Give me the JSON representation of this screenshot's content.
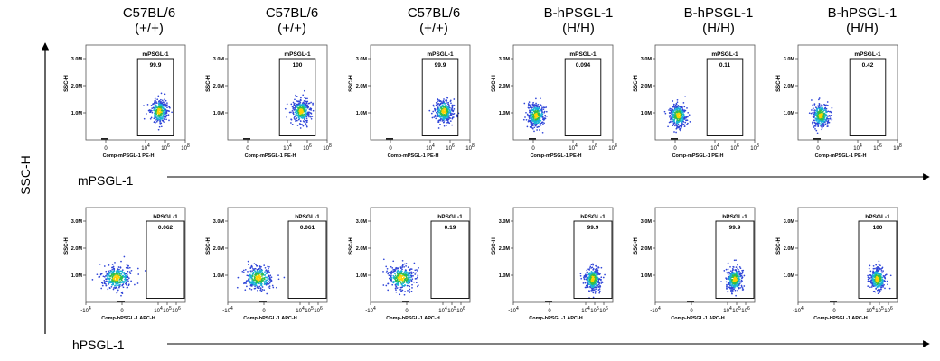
{
  "figure": {
    "column_titles": [
      [
        "C57BL/6",
        "(+/+)"
      ],
      [
        "C57BL/6",
        "(+/+)"
      ],
      [
        "C57BL/6",
        "(+/+)"
      ],
      [
        "B-hPSGL-1",
        "(H/H)"
      ],
      [
        "B-hPSGL-1",
        "(H/H)"
      ],
      [
        "B-hPSGL-1",
        "(H/H)"
      ]
    ],
    "y_axis_label": "SSC-H",
    "row_labels": [
      "mPSGL-1",
      "hPSGL-1"
    ]
  },
  "chart_data": [
    {
      "type": "scatter",
      "row": "mPSGL-1",
      "ylabel": "SSC-H",
      "yticks": [
        "1.0M",
        "2.0M",
        "3.0M"
      ],
      "ylim": [
        0,
        3.5
      ],
      "xlabel": "Comp-mPSGL-1 PE-H",
      "xticks": [
        "0",
        "10^4",
        "10^6",
        "10^8"
      ],
      "xlim": [
        -2,
        8
      ],
      "gate_label": "mPSGL-1",
      "gate_x": [
        3.2,
        6.8
      ],
      "gate_y": [
        0.15,
        3.0
      ],
      "panels": [
        {
          "sample": "C57BL/6 (+/+)",
          "gate_percent": "99.9",
          "cluster_center": [
            5.4,
            1.05
          ]
        },
        {
          "sample": "C57BL/6 (+/+)",
          "gate_percent": "100",
          "cluster_center": [
            5.4,
            1.05
          ]
        },
        {
          "sample": "C57BL/6 (+/+)",
          "gate_percent": "99.9",
          "cluster_center": [
            5.4,
            1.05
          ]
        },
        {
          "sample": "B-hPSGL-1 (H/H)",
          "gate_percent": "0.094",
          "cluster_center": [
            0.3,
            0.9
          ]
        },
        {
          "sample": "B-hPSGL-1 (H/H)",
          "gate_percent": "0.11",
          "cluster_center": [
            0.3,
            0.9
          ]
        },
        {
          "sample": "B-hPSGL-1 (H/H)",
          "gate_percent": "0.42",
          "cluster_center": [
            0.3,
            0.9
          ]
        }
      ]
    },
    {
      "type": "scatter",
      "row": "hPSGL-1",
      "ylabel": "SSC-H",
      "yticks": [
        "1.0M",
        "2.0M",
        "3.0M"
      ],
      "ylim": [
        0,
        3.5
      ],
      "xlabel": "Comp-hPSGL-1 APC-H",
      "xticks": [
        "-10^4",
        "0",
        "10^4",
        "10^5",
        "10^6"
      ],
      "xlim": [
        -4,
        7
      ],
      "gate_label": "hPSGL-1",
      "gate_x": [
        2.7,
        6.9
      ],
      "gate_y": [
        0.15,
        3.0
      ],
      "panels": [
        {
          "sample": "C57BL/6 (+/+)",
          "gate_percent": "0.062",
          "cluster_center": [
            -0.6,
            0.9
          ]
        },
        {
          "sample": "C57BL/6 (+/+)",
          "gate_percent": "0.061",
          "cluster_center": [
            -0.6,
            0.9
          ]
        },
        {
          "sample": "C57BL/6 (+/+)",
          "gate_percent": "0.19",
          "cluster_center": [
            -0.6,
            0.9
          ]
        },
        {
          "sample": "B-hPSGL-1 (H/H)",
          "gate_percent": "99.9",
          "cluster_center": [
            4.8,
            0.85
          ]
        },
        {
          "sample": "B-hPSGL-1 (H/H)",
          "gate_percent": "99.9",
          "cluster_center": [
            4.8,
            0.85
          ]
        },
        {
          "sample": "B-hPSGL-1 (H/H)",
          "gate_percent": "100",
          "cluster_center": [
            4.8,
            0.85
          ]
        }
      ]
    }
  ]
}
